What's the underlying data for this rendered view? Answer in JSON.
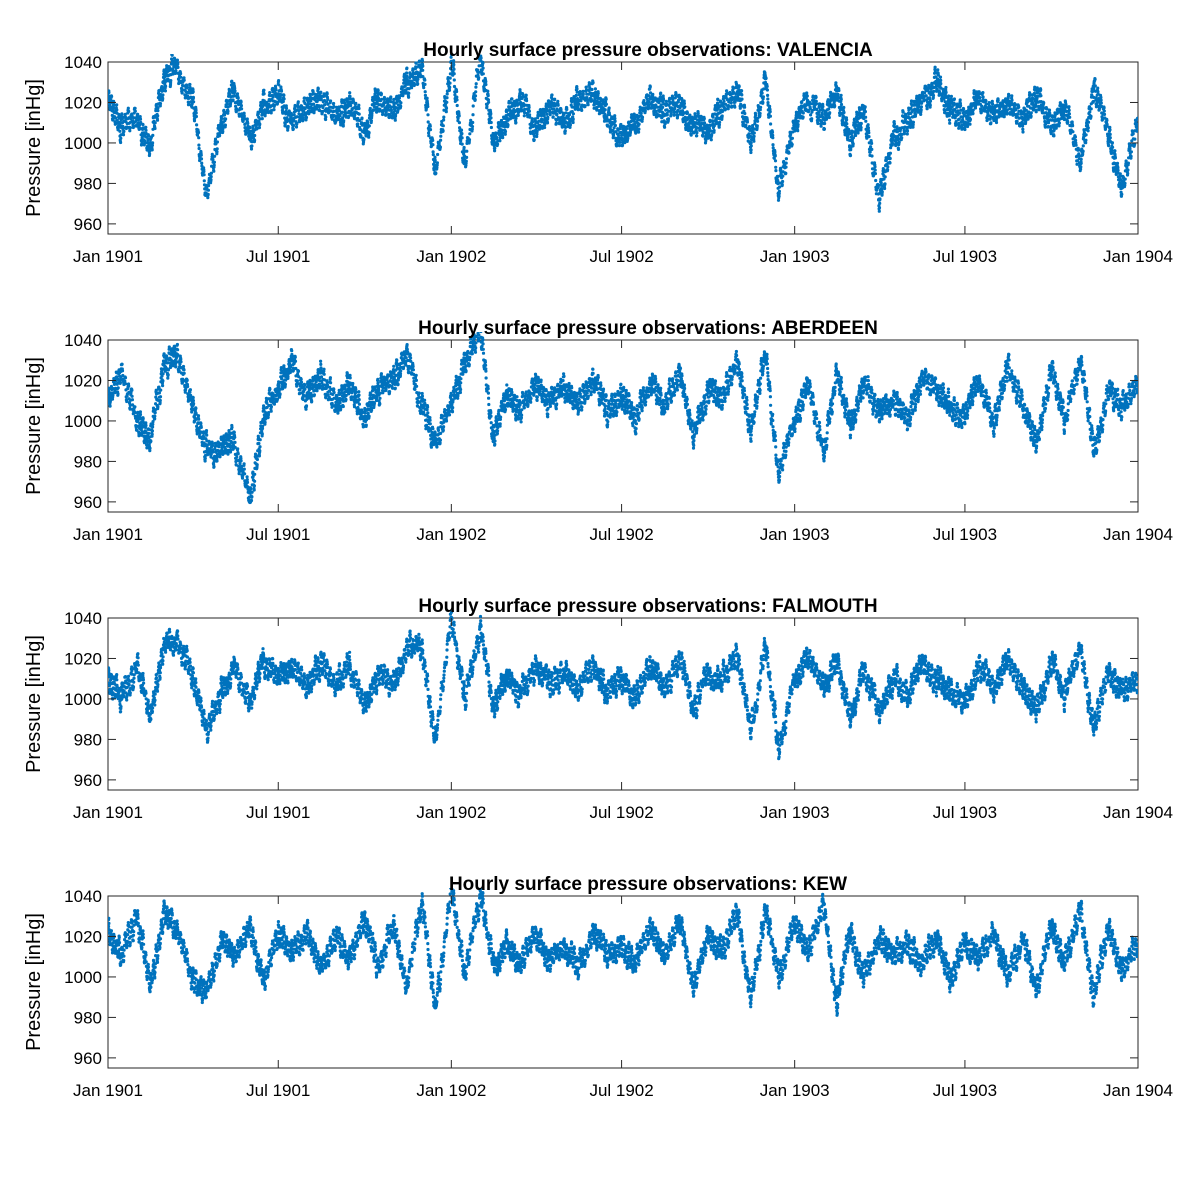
{
  "chart_data": [
    {
      "type": "scatter",
      "title": "Hourly surface pressure observations: VALENCIA",
      "ylabel": "Pressure [inHg]",
      "xlabel": "",
      "ylim": [
        955,
        1040
      ],
      "xlim": [
        "1901-01-01",
        "1904-01-01"
      ],
      "yticks": [
        960,
        980,
        1000,
        1020,
        1040
      ],
      "xticks": [
        "Jan 1901",
        "Jul 1901",
        "Jan 1902",
        "Jul 1902",
        "Jan 1903",
        "Jul 1903",
        "Jan 1904"
      ],
      "color": "#0072BD",
      "grid": false,
      "x": [
        "1901-01-01",
        "1901-01-15",
        "1901-02-01",
        "1901-02-15",
        "1901-03-01",
        "1901-03-15",
        "1901-04-01",
        "1901-04-15",
        "1901-05-01",
        "1901-05-15",
        "1901-06-01",
        "1901-06-15",
        "1901-07-01",
        "1901-07-15",
        "1901-08-01",
        "1901-08-15",
        "1901-09-01",
        "1901-09-15",
        "1901-10-01",
        "1901-10-15",
        "1901-11-01",
        "1901-11-15",
        "1901-12-01",
        "1901-12-15",
        "1902-01-01",
        "1902-01-15",
        "1902-02-01",
        "1902-02-15",
        "1902-03-01",
        "1902-03-15",
        "1902-04-01",
        "1902-04-15",
        "1902-05-01",
        "1902-05-15",
        "1902-06-01",
        "1902-06-15",
        "1902-07-01",
        "1902-07-15",
        "1902-08-01",
        "1902-08-15",
        "1902-09-01",
        "1902-09-15",
        "1902-10-01",
        "1902-10-15",
        "1902-11-01",
        "1902-11-15",
        "1902-12-01",
        "1902-12-15",
        "1903-01-01",
        "1903-01-15",
        "1903-02-01",
        "1903-02-15",
        "1903-03-01",
        "1903-03-15",
        "1903-04-01",
        "1903-04-15",
        "1903-05-01",
        "1903-05-15",
        "1903-06-01",
        "1903-06-15",
        "1903-07-01",
        "1903-07-15",
        "1903-08-01",
        "1903-08-15",
        "1903-09-01",
        "1903-09-15",
        "1903-10-01",
        "1903-10-15",
        "1903-11-01",
        "1903-11-15",
        "1903-12-01",
        "1903-12-15",
        "1904-01-01"
      ],
      "y": [
        1020,
        1008,
        1012,
        998,
        1030,
        1038,
        1022,
        975,
        1008,
        1025,
        1002,
        1020,
        1024,
        1010,
        1018,
        1022,
        1012,
        1020,
        1006,
        1022,
        1014,
        1030,
        1038,
        985,
        1040,
        990,
        1042,
        1000,
        1012,
        1022,
        1006,
        1018,
        1010,
        1020,
        1024,
        1012,
        1002,
        1008,
        1022,
        1014,
        1018,
        1010,
        1005,
        1016,
        1028,
        1000,
        1032,
        975,
        1010,
        1020,
        1012,
        1026,
        998,
        1018,
        972,
        1004,
        1010,
        1020,
        1030,
        1018,
        1010,
        1024,
        1015,
        1020,
        1012,
        1022,
        1008,
        1018,
        990,
        1028,
        1002,
        978,
        1012
      ]
    },
    {
      "type": "scatter",
      "title": "Hourly surface pressure observations: ABERDEEN",
      "ylabel": "Pressure [inHg]",
      "xlabel": "",
      "ylim": [
        955,
        1040
      ],
      "xlim": [
        "1901-01-01",
        "1904-01-01"
      ],
      "yticks": [
        960,
        980,
        1000,
        1020,
        1040
      ],
      "xticks": [
        "Jan 1901",
        "Jul 1901",
        "Jan 1902",
        "Jul 1902",
        "Jan 1903",
        "Jul 1903",
        "Jan 1904"
      ],
      "color": "#0072BD",
      "grid": false,
      "x": [
        "1901-01-01",
        "1901-01-15",
        "1901-02-01",
        "1901-02-15",
        "1901-03-01",
        "1901-03-15",
        "1901-04-01",
        "1901-04-15",
        "1901-05-01",
        "1901-05-15",
        "1901-06-01",
        "1901-06-15",
        "1901-07-01",
        "1901-07-15",
        "1901-08-01",
        "1901-08-15",
        "1901-09-01",
        "1901-09-15",
        "1901-10-01",
        "1901-10-15",
        "1901-11-01",
        "1901-11-15",
        "1901-12-01",
        "1901-12-15",
        "1902-01-01",
        "1902-01-15",
        "1902-02-01",
        "1902-02-15",
        "1902-03-01",
        "1902-03-15",
        "1902-04-01",
        "1902-04-15",
        "1902-05-01",
        "1902-05-15",
        "1902-06-01",
        "1902-06-15",
        "1902-07-01",
        "1902-07-15",
        "1902-08-01",
        "1902-08-15",
        "1902-09-01",
        "1902-09-15",
        "1902-10-01",
        "1902-10-15",
        "1902-11-01",
        "1902-11-15",
        "1902-12-01",
        "1902-12-15",
        "1903-01-01",
        "1903-01-15",
        "1903-02-01",
        "1903-02-15",
        "1903-03-01",
        "1903-03-15",
        "1903-04-01",
        "1903-04-15",
        "1903-05-01",
        "1903-05-15",
        "1903-06-01",
        "1903-06-15",
        "1903-07-01",
        "1903-07-15",
        "1903-08-01",
        "1903-08-15",
        "1903-09-01",
        "1903-09-15",
        "1903-10-01",
        "1903-10-15",
        "1903-11-01",
        "1903-11-15",
        "1903-12-01",
        "1903-12-15",
        "1904-01-01"
      ],
      "y": [
        1010,
        1025,
        1000,
        990,
        1028,
        1032,
        1008,
        988,
        985,
        992,
        960,
        1000,
        1015,
        1030,
        1012,
        1024,
        1006,
        1018,
        1002,
        1015,
        1020,
        1034,
        1010,
        990,
        1008,
        1030,
        1048,
        990,
        1014,
        1004,
        1020,
        1010,
        1016,
        1008,
        1020,
        1004,
        1012,
        1000,
        1018,
        1006,
        1026,
        992,
        1015,
        1010,
        1030,
        995,
        1032,
        975,
        1000,
        1020,
        985,
        1024,
        998,
        1018,
        1005,
        1010,
        1000,
        1020,
        1016,
        1008,
        1002,
        1020,
        998,
        1028,
        1006,
        990,
        1026,
        1000,
        1030,
        985,
        1016,
        1008,
        1020
      ]
    },
    {
      "type": "scatter",
      "title": "Hourly surface pressure observations: FALMOUTH",
      "ylabel": "Pressure [inHg]",
      "xlabel": "",
      "ylim": [
        955,
        1040
      ],
      "xlim": [
        "1901-01-01",
        "1904-01-01"
      ],
      "yticks": [
        960,
        980,
        1000,
        1020,
        1040
      ],
      "xticks": [
        "Jan 1901",
        "Jul 1901",
        "Jan 1902",
        "Jul 1902",
        "Jan 1903",
        "Jul 1903",
        "Jan 1904"
      ],
      "color": "#0072BD",
      "grid": false,
      "x": [
        "1901-01-01",
        "1901-01-15",
        "1901-02-01",
        "1901-02-15",
        "1901-03-01",
        "1901-03-15",
        "1901-04-01",
        "1901-04-15",
        "1901-05-01",
        "1901-05-15",
        "1901-06-01",
        "1901-06-15",
        "1901-07-01",
        "1901-07-15",
        "1901-08-01",
        "1901-08-15",
        "1901-09-01",
        "1901-09-15",
        "1901-10-01",
        "1901-10-15",
        "1901-11-01",
        "1901-11-15",
        "1901-12-01",
        "1901-12-15",
        "1902-01-01",
        "1902-01-15",
        "1902-02-01",
        "1902-02-15",
        "1902-03-01",
        "1902-03-15",
        "1902-04-01",
        "1902-04-15",
        "1902-05-01",
        "1902-05-15",
        "1902-06-01",
        "1902-06-15",
        "1902-07-01",
        "1902-07-15",
        "1902-08-01",
        "1902-08-15",
        "1902-09-01",
        "1902-09-15",
        "1902-10-01",
        "1902-10-15",
        "1902-11-01",
        "1902-11-15",
        "1902-12-01",
        "1902-12-15",
        "1903-01-01",
        "1903-01-15",
        "1903-02-01",
        "1903-02-15",
        "1903-03-01",
        "1903-03-15",
        "1903-04-01",
        "1903-04-15",
        "1903-05-01",
        "1903-05-15",
        "1903-06-01",
        "1903-06-15",
        "1903-07-01",
        "1903-07-15",
        "1903-08-01",
        "1903-08-15",
        "1903-09-01",
        "1903-09-15",
        "1903-10-01",
        "1903-10-15",
        "1903-11-01",
        "1903-11-15",
        "1903-12-01",
        "1903-12-15",
        "1904-01-01"
      ],
      "y": [
        1012,
        1000,
        1018,
        990,
        1025,
        1030,
        1010,
        985,
        1004,
        1016,
        998,
        1020,
        1010,
        1015,
        1006,
        1018,
        1008,
        1016,
        998,
        1012,
        1008,
        1026,
        1024,
        980,
        1040,
        1000,
        1036,
        995,
        1010,
        1004,
        1016,
        1008,
        1012,
        1004,
        1018,
        1002,
        1010,
        1000,
        1016,
        1006,
        1020,
        995,
        1012,
        1008,
        1022,
        985,
        1026,
        975,
        1010,
        1020,
        1006,
        1020,
        990,
        1016,
        994,
        1008,
        1000,
        1018,
        1010,
        1004,
        1000,
        1016,
        1004,
        1020,
        1006,
        994,
        1020,
        1000,
        1026,
        985,
        1014,
        1004,
        1010
      ]
    },
    {
      "type": "scatter",
      "title": "Hourly surface pressure observations: KEW",
      "ylabel": "Pressure [inHg]",
      "xlabel": "",
      "ylim": [
        955,
        1040
      ],
      "xlim": [
        "1901-01-01",
        "1904-01-01"
      ],
      "yticks": [
        960,
        980,
        1000,
        1020,
        1040
      ],
      "xticks": [
        "Jan 1901",
        "Jul 1901",
        "Jan 1902",
        "Jul 1902",
        "Jan 1903",
        "Jul 1903",
        "Jan 1904"
      ],
      "color": "#0072BD",
      "grid": false,
      "x": [
        "1901-01-01",
        "1901-01-15",
        "1901-02-01",
        "1901-02-15",
        "1901-03-01",
        "1901-03-15",
        "1901-04-01",
        "1901-04-15",
        "1901-05-01",
        "1901-05-15",
        "1901-06-01",
        "1901-06-15",
        "1901-07-01",
        "1901-07-15",
        "1901-08-01",
        "1901-08-15",
        "1901-09-01",
        "1901-09-15",
        "1901-10-01",
        "1901-10-15",
        "1901-11-01",
        "1901-11-15",
        "1901-12-01",
        "1901-12-15",
        "1902-01-01",
        "1902-01-15",
        "1902-02-01",
        "1902-02-15",
        "1902-03-01",
        "1902-03-15",
        "1902-04-01",
        "1902-04-15",
        "1902-05-01",
        "1902-05-15",
        "1902-06-01",
        "1902-06-15",
        "1902-07-01",
        "1902-07-15",
        "1902-08-01",
        "1902-08-15",
        "1902-09-01",
        "1902-09-15",
        "1902-10-01",
        "1902-10-15",
        "1902-11-01",
        "1902-11-15",
        "1902-12-01",
        "1902-12-15",
        "1903-01-01",
        "1903-01-15",
        "1903-02-01",
        "1903-02-15",
        "1903-03-01",
        "1903-03-15",
        "1903-04-01",
        "1903-04-15",
        "1903-05-01",
        "1903-05-15",
        "1903-06-01",
        "1903-06-15",
        "1903-07-01",
        "1903-07-15",
        "1903-08-01",
        "1903-08-15",
        "1903-09-01",
        "1903-09-15",
        "1903-10-01",
        "1903-10-15",
        "1903-11-01",
        "1903-11-15",
        "1903-12-01",
        "1903-12-15",
        "1904-01-01"
      ],
      "y": [
        1025,
        1010,
        1030,
        995,
        1032,
        1022,
        1000,
        990,
        1020,
        1010,
        1026,
        998,
        1022,
        1012,
        1024,
        1004,
        1020,
        1010,
        1028,
        1006,
        1026,
        995,
        1036,
        985,
        1044,
        1000,
        1040,
        1008,
        1018,
        1006,
        1022,
        1010,
        1016,
        1004,
        1022,
        1012,
        1016,
        1006,
        1024,
        1010,
        1026,
        995,
        1020,
        1012,
        1030,
        990,
        1034,
        1000,
        1026,
        1012,
        1036,
        985,
        1024,
        1000,
        1020,
        1012,
        1016,
        1006,
        1020,
        998,
        1018,
        1008,
        1022,
        1000,
        1020,
        995,
        1024,
        1006,
        1034,
        990,
        1024,
        1004,
        1016
      ]
    }
  ]
}
